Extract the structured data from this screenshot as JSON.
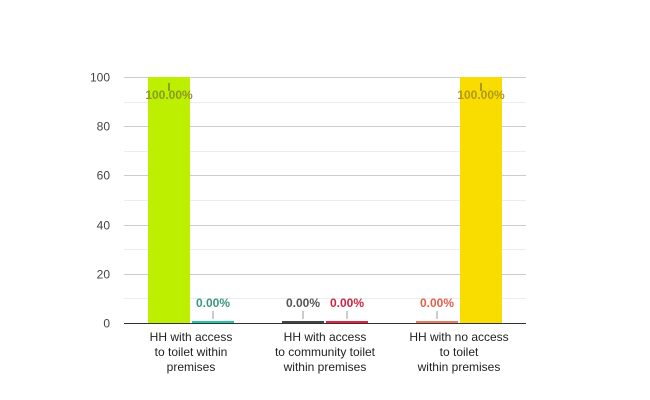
{
  "chart_data": {
    "type": "bar",
    "categories": [
      [
        "HH with access",
        "to toilet within",
        "premises"
      ],
      [
        "HH with access",
        "to community toilet",
        "within premises"
      ],
      [
        "HH with no access",
        "to toilet",
        "within premises"
      ]
    ],
    "ylim": [
      0,
      100
    ],
    "yticks": [
      0,
      20,
      40,
      60,
      80,
      100
    ],
    "grid": true,
    "legend": "none",
    "series_colors": [
      "#444444",
      "#bdf000",
      "#27c3a8",
      "#e8203e",
      "#f07a60",
      "#f9dc00"
    ],
    "groups": [
      [
        {
          "value": 100,
          "label": "100.00%",
          "color": "#bdf000",
          "label_color": "#8a9a1e"
        },
        {
          "value": 0,
          "label": "0.00%",
          "color": "#27c3a8",
          "label_color": "#3a9880"
        }
      ],
      [
        {
          "value": 0,
          "label": "0.00%",
          "color": "#444444",
          "label_color": "#555555"
        },
        {
          "value": 0,
          "label": "0.00%",
          "color": "#e8203e",
          "label_color": "#cc2244"
        }
      ],
      [
        {
          "value": 0,
          "label": "0.00%",
          "color": "#f07a60",
          "label_color": "#e0604a"
        },
        {
          "value": 100,
          "label": "100.00%",
          "color": "#f9dc00",
          "label_color": "#b09a10"
        }
      ]
    ]
  }
}
